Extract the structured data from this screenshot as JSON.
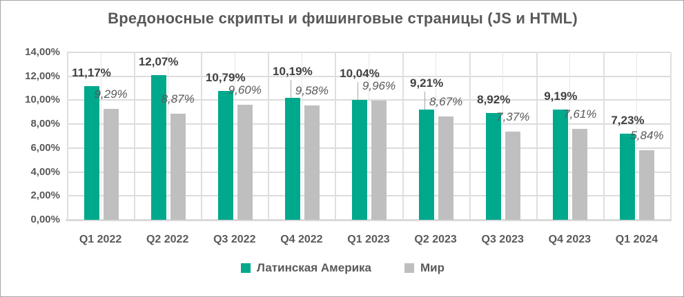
{
  "title": "Вредоносные скрипты и фишинговые страницы (JS и HTML)",
  "chart_data": {
    "type": "bar",
    "title": "Вредоносные скрипты и фишинговые страницы (JS и HTML)",
    "categories": [
      "Q1 2022",
      "Q2 2022",
      "Q3 2022",
      "Q4 2022",
      "Q1 2023",
      "Q2 2023",
      "Q3 2023",
      "Q4 2023",
      "Q1 2024"
    ],
    "series": [
      {
        "name": "Латинская Америка",
        "color": "#00A88C",
        "values": [
          11.17,
          12.07,
          10.79,
          10.19,
          10.04,
          9.21,
          8.92,
          9.19,
          7.23
        ],
        "data_labels": [
          "11,17%",
          "12,07%",
          "10,79%",
          "10,19%",
          "10,04%",
          "9,21%",
          "8,92%",
          "9,19%",
          "7,23%"
        ],
        "label_style": "bold"
      },
      {
        "name": "Мир",
        "color": "#BFBFBF",
        "values": [
          9.29,
          8.87,
          9.6,
          9.58,
          9.96,
          8.67,
          7.37,
          7.61,
          5.84
        ],
        "data_labels": [
          "9,29%",
          "8,87%",
          "9,60%",
          "9,58%",
          "9,96%",
          "8,67%",
          "7,37%",
          "7,61%",
          "5,84%"
        ],
        "label_style": "italic"
      }
    ],
    "xlabel": "",
    "ylabel": "",
    "ylim": [
      0,
      14
    ],
    "y_tick_labels": [
      "14,00%",
      "12,00%",
      "10,00%",
      "8,00%",
      "6,00%",
      "4,00%",
      "2,00%",
      "0,00%"
    ],
    "grid": true,
    "legend_position": "bottom",
    "callout_categories": [
      "Q4 2022",
      "Q1 2023",
      "Q2 2023"
    ]
  },
  "colors": {
    "title_text": "#595959",
    "axis_text": "#595959",
    "data_label_bold": "#404040",
    "data_label_italic": "#595959",
    "gridline": "#DCDCDC",
    "axis_line": "#D9D9D9",
    "leader_line": "#A6A6A6",
    "frame_border": "#A6A6A6",
    "background": "#FFFFFF"
  }
}
